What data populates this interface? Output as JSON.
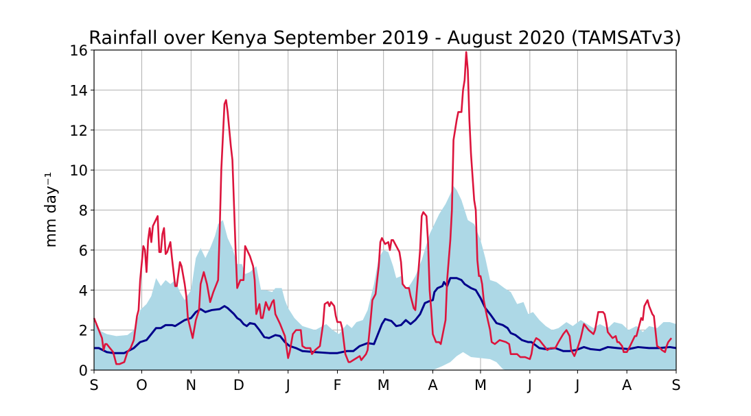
{
  "chart_data": {
    "type": "line",
    "title": "Rainfall over Kenya September 2019 - August 2020 (TAMSATv3)",
    "xlabel": "",
    "ylabel": "mm day⁻¹",
    "xlim": [
      "2019-09-01",
      "2020-09-01"
    ],
    "ylim": [
      0,
      16
    ],
    "grid": true,
    "xticks": [
      "2019-09-01",
      "2019-10-01",
      "2019-11-01",
      "2019-12-01",
      "2020-01-01",
      "2020-02-01",
      "2020-03-01",
      "2020-04-01",
      "2020-05-01",
      "2020-06-01",
      "2020-07-01",
      "2020-08-01",
      "2020-09-01"
    ],
    "xticklabels": [
      "S",
      "O",
      "N",
      "D",
      "J",
      "F",
      "M",
      "A",
      "M",
      "J",
      "J",
      "A",
      "S"
    ],
    "yticks": [
      0,
      2,
      4,
      6,
      8,
      10,
      12,
      14,
      16
    ],
    "colors": {
      "band": "#add8e6",
      "mean": "#00008b",
      "current": "#dc143c",
      "grid": "#b0b0b0"
    },
    "band": {
      "upper": {
        "x": [
          "2019-09-01",
          "2019-09-04",
          "2019-09-09",
          "2019-09-15",
          "2019-09-22",
          "2019-09-26",
          "2019-09-30",
          "2019-10-04",
          "2019-10-07",
          "2019-10-10",
          "2019-10-13",
          "2019-10-16",
          "2019-10-19",
          "2019-10-22",
          "2019-10-25",
          "2019-10-28",
          "2019-11-01",
          "2019-11-04",
          "2019-11-07",
          "2019-11-10",
          "2019-11-13",
          "2019-11-16",
          "2019-11-18",
          "2019-11-21",
          "2019-11-24",
          "2019-11-27",
          "2019-11-30",
          "2019-12-03",
          "2019-12-05",
          "2019-12-08",
          "2019-12-12",
          "2019-12-15",
          "2019-12-18",
          "2019-12-22",
          "2019-12-24",
          "2019-12-28",
          "2019-12-30",
          "2020-01-01",
          "2020-01-05",
          "2020-01-10",
          "2020-01-18",
          "2020-01-25",
          "2020-01-29",
          "2020-02-02",
          "2020-02-07",
          "2020-02-10",
          "2020-02-13",
          "2020-02-17",
          "2020-02-20",
          "2020-02-24",
          "2020-02-27",
          "2020-03-01",
          "2020-03-04",
          "2020-03-07",
          "2020-03-09",
          "2020-03-12",
          "2020-03-15",
          "2020-03-18",
          "2020-03-21",
          "2020-03-25",
          "2020-03-30",
          "2020-04-02",
          "2020-04-05",
          "2020-04-09",
          "2020-04-12",
          "2020-04-14",
          "2020-04-16",
          "2020-04-19",
          "2020-04-23",
          "2020-04-27",
          "2020-05-01",
          "2020-05-04",
          "2020-05-07",
          "2020-05-11",
          "2020-05-16",
          "2020-05-20",
          "2020-05-24",
          "2020-05-28",
          "2020-05-31",
          "2020-06-03",
          "2020-06-07",
          "2020-06-11",
          "2020-06-15",
          "2020-06-19",
          "2020-06-24",
          "2020-06-28",
          "2020-07-03",
          "2020-07-07",
          "2020-07-11",
          "2020-07-15",
          "2020-07-20",
          "2020-07-24",
          "2020-07-29",
          "2020-08-02",
          "2020-08-07",
          "2020-08-11",
          "2020-08-15",
          "2020-08-20",
          "2020-08-24",
          "2020-08-28",
          "2020-09-01"
        ],
        "y": [
          2.4,
          2.0,
          1.8,
          1.7,
          1.75,
          2.0,
          3.0,
          3.3,
          3.7,
          4.6,
          4.2,
          4.5,
          4.3,
          4.5,
          3.9,
          3.5,
          4.0,
          5.6,
          6.1,
          5.6,
          6.1,
          6.7,
          7.3,
          7.5,
          6.6,
          6.1,
          5.3,
          5.3,
          4.8,
          4.9,
          5.2,
          4.0,
          4.0,
          3.9,
          4.1,
          4.1,
          3.5,
          3.1,
          2.6,
          2.2,
          2.0,
          2.3,
          2.0,
          1.8,
          2.3,
          2.1,
          2.4,
          2.5,
          3.0,
          4.3,
          5.6,
          6.0,
          5.9,
          5.2,
          4.6,
          4.7,
          4.0,
          4.3,
          4.7,
          5.5,
          6.8,
          7.3,
          7.8,
          8.3,
          8.8,
          9.2,
          9.0,
          8.5,
          7.5,
          7.3,
          6.5,
          5.6,
          4.5,
          4.4,
          4.1,
          3.9,
          3.3,
          3.4,
          2.8,
          2.9,
          2.5,
          2.2,
          2.0,
          2.1,
          2.4,
          2.2,
          2.5,
          2.3,
          2.1,
          2.3,
          2.1,
          2.4,
          2.3,
          2.0,
          2.2,
          1.9,
          2.2,
          2.1,
          2.4,
          2.4,
          2.3
        ]
      },
      "lower": {
        "x": [
          "2019-09-01",
          "2020-04-01",
          "2020-04-07",
          "2020-04-12",
          "2020-04-16",
          "2020-04-20",
          "2020-04-25",
          "2020-05-01",
          "2020-05-07",
          "2020-05-11",
          "2020-05-15",
          "2020-05-17",
          "2020-09-01"
        ],
        "y": [
          0,
          0,
          0.2,
          0.4,
          0.7,
          0.9,
          0.65,
          0.6,
          0.55,
          0.4,
          0.05,
          0,
          0
        ]
      }
    },
    "series": [
      {
        "key": "mean",
        "x": [
          "2019-09-01",
          "2019-09-04",
          "2019-09-09",
          "2019-09-13",
          "2019-09-20",
          "2019-09-26",
          "2019-09-30",
          "2019-10-04",
          "2019-10-07",
          "2019-10-10",
          "2019-10-13",
          "2019-10-16",
          "2019-10-20",
          "2019-10-22",
          "2019-10-25",
          "2019-10-28",
          "2019-11-01",
          "2019-11-04",
          "2019-11-07",
          "2019-11-10",
          "2019-11-14",
          "2019-11-19",
          "2019-11-22",
          "2019-11-24",
          "2019-11-28",
          "2019-11-30",
          "2019-12-02",
          "2019-12-04",
          "2019-12-06",
          "2019-12-08",
          "2019-12-11",
          "2019-12-14",
          "2019-12-17",
          "2019-12-20",
          "2019-12-24",
          "2019-12-27",
          "2019-12-30",
          "2020-01-02",
          "2020-01-06",
          "2020-01-10",
          "2020-01-18",
          "2020-01-27",
          "2020-02-01",
          "2020-02-07",
          "2020-02-11",
          "2020-02-15",
          "2020-02-20",
          "2020-02-24",
          "2020-02-26",
          "2020-02-29",
          "2020-03-02",
          "2020-03-06",
          "2020-03-09",
          "2020-03-12",
          "2020-03-15",
          "2020-03-18",
          "2020-03-21",
          "2020-03-24",
          "2020-03-27",
          "2020-03-30",
          "2020-04-01",
          "2020-04-02",
          "2020-04-04",
          "2020-04-07",
          "2020-04-08",
          "2020-04-10",
          "2020-04-12",
          "2020-04-16",
          "2020-04-19",
          "2020-04-21",
          "2020-04-25",
          "2020-04-28",
          "2020-05-01",
          "2020-05-04",
          "2020-05-07",
          "2020-05-11",
          "2020-05-15",
          "2020-05-18",
          "2020-05-20",
          "2020-05-23",
          "2020-05-27",
          "2020-05-31",
          "2020-06-02",
          "2020-06-07",
          "2020-06-11",
          "2020-06-17",
          "2020-06-22",
          "2020-06-26",
          "2020-06-30",
          "2020-07-05",
          "2020-07-09",
          "2020-07-15",
          "2020-07-20",
          "2020-07-26",
          "2020-08-02",
          "2020-08-08",
          "2020-08-15",
          "2020-08-21",
          "2020-08-28",
          "2020-09-01"
        ],
        "y": [
          1.1,
          1.1,
          0.9,
          0.85,
          0.85,
          1.1,
          1.4,
          1.5,
          1.8,
          2.1,
          2.1,
          2.25,
          2.25,
          2.2,
          2.35,
          2.5,
          2.6,
          2.9,
          3.05,
          2.9,
          3.0,
          3.05,
          3.2,
          3.1,
          2.8,
          2.6,
          2.5,
          2.3,
          2.2,
          2.35,
          2.3,
          2.0,
          1.65,
          1.6,
          1.75,
          1.7,
          1.4,
          1.2,
          1.1,
          0.95,
          0.9,
          0.85,
          0.85,
          0.95,
          0.95,
          1.2,
          1.35,
          1.3,
          1.7,
          2.3,
          2.55,
          2.45,
          2.2,
          2.25,
          2.5,
          2.3,
          2.5,
          2.8,
          3.35,
          3.45,
          3.5,
          3.9,
          4.1,
          4.2,
          4.4,
          4.2,
          4.6,
          4.6,
          4.5,
          4.3,
          4.1,
          4.0,
          3.6,
          3.1,
          2.8,
          2.35,
          2.25,
          2.1,
          1.85,
          1.75,
          1.5,
          1.4,
          1.4,
          1.1,
          1.05,
          1.1,
          0.95,
          0.95,
          1.0,
          1.15,
          1.05,
          1.0,
          1.15,
          1.1,
          1.05,
          1.15,
          1.1,
          1.1,
          1.15,
          1.1
        ]
      },
      {
        "key": "current",
        "x": [
          "2019-09-01",
          "2019-09-04",
          "2019-09-06",
          "2019-09-07",
          "2019-09-08",
          "2019-09-09",
          "2019-09-11",
          "2019-09-13",
          "2019-09-15",
          "2019-09-17",
          "2019-09-20",
          "2019-09-22",
          "2019-09-24",
          "2019-09-26",
          "2019-09-28",
          "2019-09-29",
          "2019-09-30",
          "2019-10-02",
          "2019-10-03",
          "2019-10-04",
          "2019-10-05",
          "2019-10-06",
          "2019-10-07",
          "2019-10-08",
          "2019-10-11",
          "2019-10-12",
          "2019-10-13",
          "2019-10-14",
          "2019-10-15",
          "2019-10-16",
          "2019-10-17",
          "2019-10-19",
          "2019-10-20",
          "2019-10-22",
          "2019-10-23",
          "2019-10-25",
          "2019-10-26",
          "2019-10-28",
          "2019-10-29",
          "2019-10-30",
          "2019-11-02",
          "2019-11-04",
          "2019-11-06",
          "2019-11-07",
          "2019-11-09",
          "2019-11-11",
          "2019-11-13",
          "2019-11-15",
          "2019-11-18",
          "2019-11-19",
          "2019-11-20",
          "2019-11-22",
          "2019-11-23",
          "2019-11-24",
          "2019-11-26",
          "2019-11-27",
          "2019-11-29",
          "2019-11-30",
          "2019-12-02",
          "2019-12-04",
          "2019-12-05",
          "2019-12-08",
          "2019-12-10",
          "2019-12-11",
          "2019-12-12",
          "2019-12-14",
          "2019-12-15",
          "2019-12-16",
          "2019-12-18",
          "2019-12-20",
          "2019-12-22",
          "2019-12-23",
          "2019-12-24",
          "2019-12-27",
          "2019-12-30",
          "2020-01-01",
          "2020-01-02",
          "2020-01-04",
          "2020-01-06",
          "2020-01-09",
          "2020-01-10",
          "2020-01-12",
          "2020-01-15",
          "2020-01-16",
          "2020-01-18",
          "2020-01-21",
          "2020-01-23",
          "2020-01-24",
          "2020-01-26",
          "2020-01-27",
          "2020-01-28",
          "2020-01-30",
          "2020-01-31",
          "2020-02-01",
          "2020-02-03",
          "2020-02-04",
          "2020-02-06",
          "2020-02-08",
          "2020-02-09",
          "2020-02-11",
          "2020-02-13",
          "2020-02-15",
          "2020-02-16",
          "2020-02-19",
          "2020-02-20",
          "2020-02-22",
          "2020-02-23",
          "2020-02-25",
          "2020-02-27",
          "2020-02-28",
          "2020-02-29",
          "2020-03-02",
          "2020-03-04",
          "2020-03-05",
          "2020-03-06",
          "2020-03-07",
          "2020-03-09",
          "2020-03-11",
          "2020-03-12",
          "2020-03-13",
          "2020-03-15",
          "2020-03-17",
          "2020-03-18",
          "2020-03-20",
          "2020-03-21",
          "2020-03-22",
          "2020-03-24",
          "2020-03-25",
          "2020-03-26",
          "2020-03-28",
          "2020-03-29",
          "2020-03-30",
          "2020-03-31",
          "2020-04-01",
          "2020-04-03",
          "2020-04-05",
          "2020-04-06",
          "2020-04-07",
          "2020-04-09",
          "2020-04-10",
          "2020-04-12",
          "2020-04-13",
          "2020-04-14",
          "2020-04-16",
          "2020-04-17",
          "2020-04-19",
          "2020-04-20",
          "2020-04-21",
          "2020-04-22",
          "2020-04-23",
          "2020-04-24",
          "2020-04-25",
          "2020-04-27",
          "2020-04-28",
          "2020-04-29",
          "2020-04-30",
          "2020-05-01",
          "2020-05-02",
          "2020-05-03",
          "2020-05-05",
          "2020-05-07",
          "2020-05-08",
          "2020-05-10",
          "2020-05-13",
          "2020-05-17",
          "2020-05-19",
          "2020-05-20",
          "2020-05-23",
          "2020-05-24",
          "2020-05-26",
          "2020-05-29",
          "2020-06-01",
          "2020-06-02",
          "2020-06-03",
          "2020-06-05",
          "2020-06-07",
          "2020-06-09",
          "2020-06-10",
          "2020-06-12",
          "2020-06-14",
          "2020-06-17",
          "2020-06-19",
          "2020-06-22",
          "2020-06-24",
          "2020-06-26",
          "2020-06-27",
          "2020-06-29",
          "2020-07-01",
          "2020-07-03",
          "2020-07-05",
          "2020-07-06",
          "2020-07-08",
          "2020-07-11",
          "2020-07-12",
          "2020-07-14",
          "2020-07-17",
          "2020-07-18",
          "2020-07-19",
          "2020-07-20",
          "2020-07-22",
          "2020-07-23",
          "2020-07-25",
          "2020-07-26",
          "2020-07-27",
          "2020-07-29",
          "2020-07-30",
          "2020-08-01",
          "2020-08-03",
          "2020-08-06",
          "2020-08-07",
          "2020-08-10",
          "2020-08-11",
          "2020-08-12",
          "2020-08-14",
          "2020-08-15",
          "2020-08-17",
          "2020-08-18",
          "2020-08-20",
          "2020-08-22",
          "2020-08-23",
          "2020-08-25",
          "2020-08-26",
          "2020-08-27",
          "2020-08-29"
        ],
        "y": [
          2.6,
          2.0,
          1.6,
          1.0,
          1.3,
          1.3,
          1.1,
          0.9,
          0.3,
          0.3,
          0.4,
          0.9,
          1.1,
          1.5,
          2.7,
          3.0,
          4.5,
          6.2,
          6.0,
          4.9,
          6.5,
          7.1,
          6.4,
          7.2,
          7.7,
          5.9,
          5.9,
          6.8,
          7.1,
          5.8,
          5.9,
          6.4,
          5.6,
          4.2,
          4.2,
          5.4,
          5.2,
          4.3,
          3.7,
          2.6,
          1.6,
          2.5,
          3.0,
          4.3,
          4.9,
          4.3,
          3.4,
          3.9,
          4.5,
          7.0,
          10.0,
          13.3,
          13.5,
          12.9,
          11.2,
          10.5,
          6.0,
          4.1,
          4.5,
          4.5,
          6.2,
          5.7,
          5.2,
          4.5,
          2.8,
          3.3,
          2.6,
          2.6,
          3.4,
          3.0,
          3.4,
          3.5,
          2.8,
          2.3,
          1.7,
          0.6,
          0.9,
          1.8,
          2.0,
          2.0,
          1.2,
          1.1,
          1.1,
          0.8,
          1.0,
          1.2,
          2.3,
          3.3,
          3.4,
          3.2,
          3.4,
          3.2,
          2.7,
          2.4,
          2.4,
          2.1,
          0.8,
          0.4,
          0.4,
          0.5,
          0.6,
          0.7,
          0.5,
          0.8,
          1.0,
          2.6,
          3.5,
          3.8,
          5.2,
          6.4,
          6.6,
          6.3,
          6.4,
          6.0,
          6.5,
          6.5,
          6.2,
          5.9,
          5.4,
          4.3,
          4.1,
          4.1,
          3.7,
          3.1,
          3.0,
          4.0,
          6.0,
          7.7,
          7.9,
          7.7,
          6.4,
          4.0,
          3.0,
          1.8,
          1.4,
          1.4,
          1.3,
          1.7,
          2.5,
          4.5,
          6.5,
          8.0,
          11.5,
          12.5,
          12.9,
          12.9,
          14.0,
          14.5,
          15.9,
          15.0,
          12.5,
          10.8,
          8.5,
          8.0,
          5.5,
          4.7,
          4.7,
          4.3,
          3.5,
          2.7,
          2.0,
          1.4,
          1.3,
          1.5,
          1.4,
          1.3,
          0.8,
          0.8,
          0.8,
          0.65,
          0.65,
          0.55,
          0.8,
          1.3,
          1.6,
          1.5,
          1.3,
          1.2,
          1.0,
          1.1,
          1.1,
          1.4,
          1.8,
          2.0,
          1.7,
          1.0,
          0.7,
          1.1,
          1.6,
          2.3,
          2.2,
          2.0,
          1.8,
          2.0,
          2.9,
          2.9,
          2.8,
          2.4,
          1.9,
          1.7,
          1.6,
          1.7,
          1.4,
          1.4,
          1.2,
          0.9,
          0.9,
          1.2,
          1.7,
          1.7,
          2.6,
          2.5,
          3.2,
          3.5,
          3.2,
          2.8,
          2.7,
          1.2,
          1.1,
          1.0,
          0.9,
          1.2,
          1.4,
          1.6
        ]
      }
    ]
  }
}
